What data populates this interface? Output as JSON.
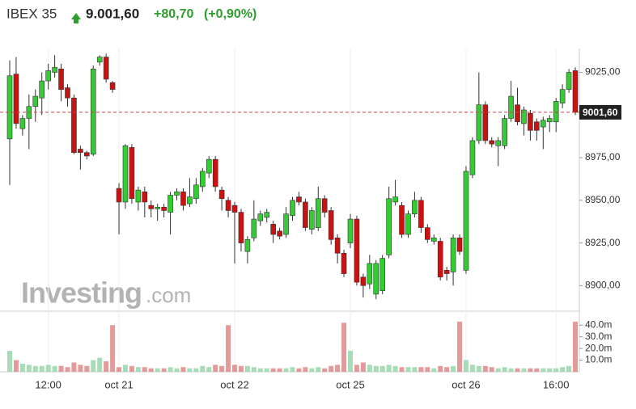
{
  "chart_data": {
    "type": "candlestick",
    "title": "IBEX 35",
    "price": "9.001,60",
    "change": "+80,70",
    "change_pct": "(+0,90%)",
    "watermark": [
      "Investing",
      ".com"
    ],
    "up_color": "#33cc33",
    "down_color": "#cc1111",
    "up_volume_color": "#a6dcb8",
    "down_volume_color": "#e49a9a",
    "last_price": 9001.6,
    "last_price_label": "9001,60",
    "open": [
      8986,
      9024,
      8992,
      8998,
      9005,
      9010,
      9020,
      9025,
      9027,
      9016,
      9010,
      8980,
      8978,
      8977,
      9031,
      9034,
      9019,
      8957,
      8949,
      8981,
      8949,
      8955,
      8947,
      8945,
      8946,
      8943,
      8953,
      8955,
      8948,
      8951,
      8958,
      8966,
      8974,
      8956,
      8950,
      8947,
      8943,
      8920,
      8928,
      8938,
      8940,
      8936,
      8932,
      8930,
      8941,
      8952,
      8949,
      8933,
      8934,
      8951,
      8944,
      8928,
      8919,
      8925,
      8939,
      8905,
      8901,
      8895,
      8897,
      8918,
      8949,
      8947,
      8930,
      8942,
      8950,
      8934,
      8926,
      8926,
      8909,
      8908,
      8928,
      8909,
      8965,
      8985,
      9006,
      8985,
      8982,
      8982,
      8998,
      9006,
      8995,
      9001,
      8996,
      8993,
      8996,
      8996,
      9007,
      9015,
      9026
    ],
    "high": [
      9032,
      9034,
      9000,
      9012,
      9015,
      9025,
      9030,
      9035,
      9030,
      9018,
      9012,
      8982,
      8979,
      9029,
      9035,
      9036,
      9020,
      8960,
      8983,
      8983,
      8958,
      8958,
      8950,
      8948,
      8948,
      8955,
      8957,
      8957,
      8963,
      8963,
      8969,
      8976,
      8976,
      8958,
      8952,
      8949,
      8945,
      8929,
      8950,
      8944,
      8945,
      8938,
      8934,
      8946,
      8952,
      8955,
      8951,
      8946,
      8958,
      8953,
      8946,
      8930,
      8921,
      8942,
      8941,
      8907,
      8918,
      8915,
      8918,
      8958,
      8962,
      8949,
      8944,
      8955,
      8952,
      8936,
      8930,
      8928,
      8911,
      8930,
      8930,
      8970,
      8987,
      9025,
      9008,
      8987,
      8987,
      9000,
      9020,
      9016,
      9005,
      9003,
      8998,
      8999,
      9000,
      9010,
      9018,
      9027,
      9028
    ],
    "low": [
      8959,
      8992,
      8988,
      8980,
      8996,
      9000,
      9015,
      9022,
      9008,
      9005,
      8977,
      8968,
      8974,
      8976,
      9029,
      9019,
      9013,
      8930,
      8945,
      8948,
      8944,
      8940,
      8940,
      8938,
      8940,
      8930,
      8950,
      8944,
      8946,
      8948,
      8955,
      8963,
      8955,
      8944,
      8940,
      8913,
      8920,
      8913,
      8926,
      8935,
      8937,
      8925,
      8927,
      8928,
      8938,
      8947,
      8932,
      8930,
      8932,
      8940,
      8924,
      8913,
      8905,
      8922,
      8900,
      8893,
      8898,
      8892,
      8895,
      8916,
      8947,
      8928,
      8928,
      8940,
      8931,
      8925,
      8924,
      8903,
      8903,
      8900,
      8918,
      8907,
      8963,
      8983,
      8983,
      8981,
      8970,
      8980,
      8996,
      8994,
      8988,
      8985,
      8985,
      8980,
      8990,
      8990,
      9004,
      9013,
      9000
    ],
    "close": [
      9023,
      8995,
      8998,
      9005,
      9011,
      9020,
      9026,
      9028,
      9015,
      9010,
      8978,
      8978,
      8976,
      9027,
      9034,
      9021,
      9015,
      8949,
      8982,
      8951,
      8956,
      8949,
      8945,
      8946,
      8944,
      8953,
      8955,
      8947,
      8952,
      8959,
      8967,
      8974,
      8958,
      8951,
      8944,
      8943,
      8925,
      8927,
      8939,
      8942,
      8943,
      8930,
      8929,
      8942,
      8950,
      8949,
      8934,
      8944,
      8951,
      8943,
      8927,
      8919,
      8907,
      8939,
      8902,
      8900,
      8913,
      8913,
      8916,
      8951,
      8952,
      8930,
      8942,
      8950,
      8934,
      8927,
      8928,
      8905,
      8907,
      8928,
      8920,
      8967,
      8985,
      9006,
      8985,
      8983,
      8985,
      8998,
      9011,
      8996,
      9003,
      8991,
      8991,
      8997,
      8998,
      9008,
      9015,
      9025,
      9001.6
    ],
    "volume": [
      18,
      10,
      7,
      6,
      5,
      5,
      6,
      5,
      5,
      4,
      8,
      6,
      5,
      10,
      12,
      9,
      40,
      4,
      6,
      5,
      4,
      4,
      3,
      3,
      3,
      4,
      3,
      4,
      3,
      3,
      5,
      4,
      6,
      5,
      40,
      6,
      5,
      5,
      4,
      3,
      3,
      3,
      3,
      3,
      4,
      3,
      4,
      3,
      4,
      3,
      5,
      6,
      42,
      18,
      6,
      8,
      6,
      5,
      5,
      6,
      5,
      4,
      4,
      4,
      4,
      4,
      3,
      5,
      4,
      5,
      43,
      10,
      6,
      5,
      5,
      4,
      3,
      4,
      3,
      3,
      3,
      3,
      3,
      3,
      3,
      3,
      4,
      5,
      43
    ],
    "ylim": [
      8885,
      9039
    ],
    "yticks": [
      {
        "value": 9025,
        "label": "9025,00"
      },
      {
        "value": 8975,
        "label": "8975,00"
      },
      {
        "value": 8950,
        "label": "8950,00"
      },
      {
        "value": 8925,
        "label": "8925,00"
      },
      {
        "value": 8900,
        "label": "8900,00"
      }
    ],
    "y2lim": [
      0,
      45
    ],
    "y2ticks": [
      {
        "value": 40,
        "label": "40.0m"
      },
      {
        "value": 30,
        "label": "30.0m"
      },
      {
        "value": 20,
        "label": "20.0m"
      },
      {
        "value": 10,
        "label": "10.0m"
      }
    ],
    "xticks": [
      {
        "value": 6,
        "label": "12:00"
      },
      {
        "value": 17,
        "label": "oct 21"
      },
      {
        "value": 35,
        "label": "oct 22"
      },
      {
        "value": 53,
        "label": "oct 25"
      },
      {
        "value": 71,
        "label": "oct 26"
      },
      {
        "value": 85,
        "label": "16:00"
      }
    ],
    "grid": true
  }
}
